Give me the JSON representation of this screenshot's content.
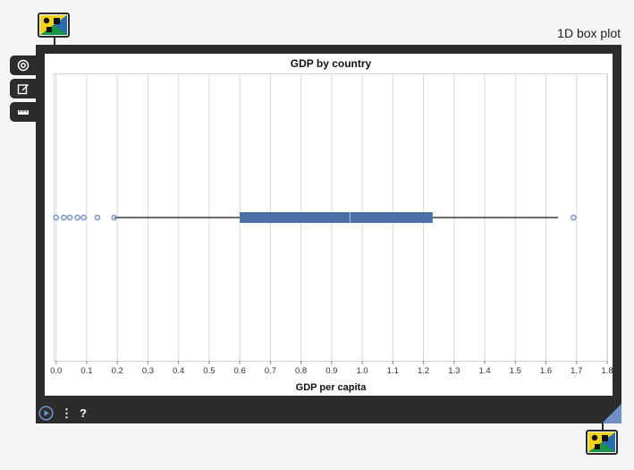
{
  "window": {
    "title": "1D box plot",
    "frame_color": "#2c2c2c",
    "accent_color": "#4a6fa5"
  },
  "toolbar": {
    "items": [
      {
        "icon": "target-icon"
      },
      {
        "icon": "edit-icon"
      },
      {
        "icon": "ruler-icon"
      }
    ]
  },
  "bottom_bar": {
    "play_icon": "play-icon",
    "menu_label": "⋮",
    "help_label": "?"
  },
  "chart_data": {
    "type": "box",
    "title": "GDP by country",
    "xlabel": "GDP per capita",
    "ylabel": "",
    "xlim": [
      -0.005,
      1.8
    ],
    "x_ticks": [
      "0.0",
      "0.1",
      "0.2",
      "0.3",
      "0.4",
      "0.5",
      "0.6",
      "0.7",
      "0.8",
      "0.9",
      "1.0",
      "1.1",
      "1.2",
      "1.3",
      "1.4",
      "1.5",
      "1.6",
      "1.7",
      "1.8"
    ],
    "grid": true,
    "box": {
      "whisker_low": 0.19,
      "q1": 0.6,
      "median": 0.96,
      "q3": 1.23,
      "whisker_high": 1.64
    },
    "outliers": [
      0.0,
      0.025,
      0.045,
      0.07,
      0.09,
      0.135,
      0.19,
      1.69
    ],
    "box_color": "#4a6fa5",
    "outlier_color": "#7f9ac4"
  }
}
